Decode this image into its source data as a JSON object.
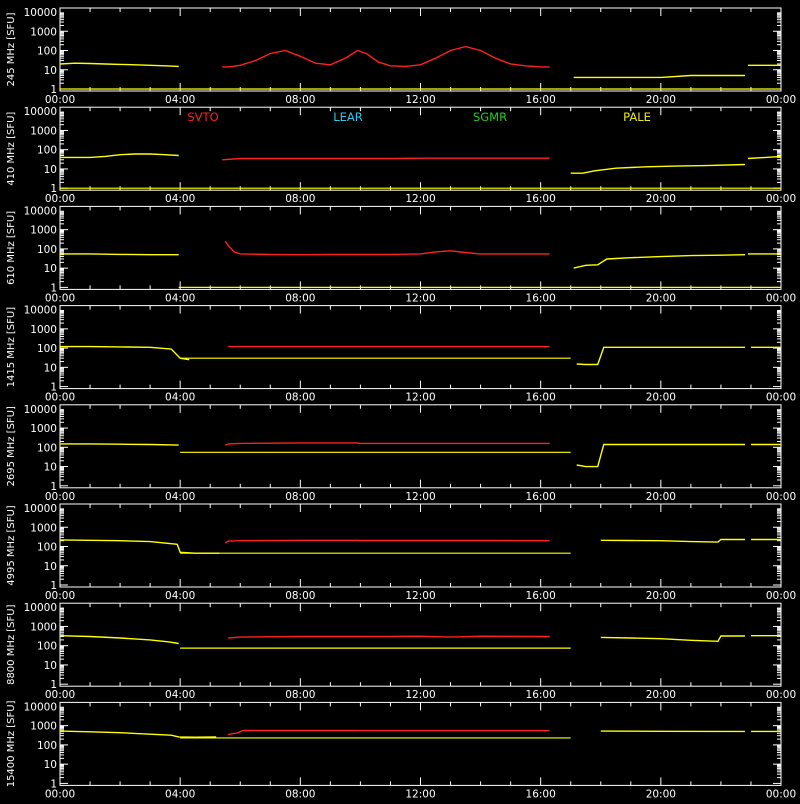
{
  "chart_data": {
    "type": "line",
    "x_ticks": [
      "00:00",
      "04:00",
      "08:00",
      "12:00",
      "16:00",
      "20:00",
      "00:00"
    ],
    "x_range_hours": [
      0,
      24
    ],
    "y_scale": "log",
    "y_range": [
      1,
      10000
    ],
    "y_ticks": [
      "1",
      "10",
      "100",
      "1000",
      "10000"
    ],
    "grid": false,
    "legend_labels": [
      {
        "name": "SVTO",
        "color": "#ff2020"
      },
      {
        "name": "LEAR",
        "color": "#2ec8e8"
      },
      {
        "name": "SGMR",
        "color": "#22cc22"
      },
      {
        "name": "PALE",
        "color": "#e8e820"
      }
    ],
    "panels": [
      {
        "ylabel": "245  MHz  [SFU]",
        "series": [
          {
            "name": "PALE",
            "color": "#ffff00",
            "x": [
              0,
              0.5,
              1,
              1.5,
              2,
              2.5,
              3,
              3.5,
              3.95
            ],
            "values": [
              20,
              22,
              21,
              20,
              19,
              18,
              17,
              16,
              15
            ]
          },
          {
            "name": "SVTO",
            "color": "#ff2020",
            "x": [
              5.4,
              5.6,
              6,
              6.5,
              7,
              7.5,
              8,
              8.5,
              9,
              9.5,
              9.9,
              10.2,
              10.6,
              11,
              11.5,
              12,
              12.5,
              13,
              13.5,
              14,
              14.5,
              15,
              15.5,
              16,
              16.3
            ],
            "values": [
              14,
              14,
              17,
              30,
              70,
              100,
              50,
              22,
              18,
              40,
              100,
              70,
              25,
              16,
              15,
              18,
              40,
              100,
              160,
              100,
              40,
              20,
              16,
              14,
              14
            ]
          },
          {
            "name": "PALE",
            "color": "#ffff00",
            "x": [
              17.1,
              17.5,
              18,
              19,
              20,
              21,
              22,
              22.8
            ],
            "values": [
              4,
              4,
              4,
              4,
              4,
              5,
              5,
              5
            ]
          },
          {
            "name": "PALE",
            "color": "#ffff00",
            "x": [
              22.9,
              23.5,
              24
            ],
            "values": [
              17,
              17,
              17
            ]
          }
        ]
      },
      {
        "ylabel": "410  MHz  [SFU]",
        "series": [
          {
            "name": "PALE",
            "color": "#ffff00",
            "x": [
              0,
              0.5,
              1,
              1.5,
              2,
              2.5,
              3,
              3.5,
              3.95
            ],
            "values": [
              40,
              40,
              40,
              45,
              55,
              60,
              60,
              55,
              50
            ]
          },
          {
            "name": "SVTO",
            "color": "#ff2020",
            "x": [
              5.4,
              6,
              7,
              8,
              9,
              9.8,
              10,
              11,
              12,
              13,
              14,
              15,
              16,
              16.3
            ],
            "values": [
              30,
              35,
              35,
              35,
              35,
              35,
              35,
              35,
              36,
              36,
              36,
              36,
              36,
              36
            ]
          },
          {
            "name": "PALE",
            "color": "#ffff00",
            "x": [
              17,
              17.4,
              17.8,
              18.5,
              19.5,
              20.5,
              21.5,
              22.8
            ],
            "values": [
              6,
              6,
              8,
              11,
              13,
              14,
              15,
              17
            ]
          },
          {
            "name": "PALE",
            "color": "#ffff00",
            "x": [
              22.9,
              23.5,
              24
            ],
            "values": [
              35,
              40,
              45
            ]
          }
        ]
      },
      {
        "ylabel": "610  MHz  [SFU]",
        "series": [
          {
            "name": "PALE",
            "color": "#ffff00",
            "x": [
              0,
              1,
              2,
              3,
              3.95
            ],
            "values": [
              55,
              55,
              52,
              50,
              50
            ]
          },
          {
            "name": "SVTO",
            "color": "#ff2020",
            "x": [
              5.5,
              5.6,
              5.8,
              6,
              7,
              8,
              9,
              10,
              11,
              12,
              12.5,
              13,
              13.5,
              14,
              15,
              16,
              16.3
            ],
            "values": [
              250,
              150,
              70,
              55,
              52,
              50,
              52,
              52,
              52,
              55,
              70,
              80,
              65,
              55,
              55,
              55,
              55
            ]
          },
          {
            "name": "PALE",
            "color": "#ffff00",
            "x": [
              17.1,
              17.5,
              17.9,
              18.2,
              19,
              20,
              21,
              22,
              22.8
            ],
            "values": [
              10,
              14,
              15,
              30,
              35,
              40,
              45,
              47,
              50
            ]
          },
          {
            "name": "PALE",
            "color": "#ffff00",
            "x": [
              22.9,
              23.5,
              24
            ],
            "values": [
              55,
              55,
              55
            ]
          }
        ]
      },
      {
        "ylabel": "1415  MHz  [SFU]",
        "series": [
          {
            "name": "PALE",
            "color": "#ffff00",
            "x": [
              0,
              1,
              2,
              3,
              3.7,
              4,
              4.3
            ],
            "values": [
              120,
              120,
              115,
              110,
              90,
              30,
              25
            ]
          },
          {
            "name": "SVTO",
            "color": "#ff2020",
            "x": [
              5.6,
              6,
              8,
              9.9,
              10,
              12,
              14,
              16.3
            ],
            "values": [
              120,
              120,
              120,
              120,
              120,
              120,
              120,
              120
            ]
          },
          {
            "name": "PALE",
            "color": "#ffff00",
            "x": [
              17.2,
              17.5,
              17.9,
              18.1,
              20,
              22,
              22.8
            ],
            "values": [
              15,
              14,
              14,
              110,
              110,
              110,
              110
            ]
          },
          {
            "name": "PALE",
            "color": "#ffff00",
            "x": [
              23,
              24
            ],
            "values": [
              110,
              110
            ]
          }
        ]
      },
      {
        "ylabel": "2695  MHz  [SFU]",
        "series": [
          {
            "name": "PALE",
            "color": "#ffff00",
            "x": [
              0,
              1,
              2,
              3,
              3.95
            ],
            "values": [
              150,
              150,
              145,
              140,
              130
            ]
          },
          {
            "name": "SVTO",
            "color": "#ff2020",
            "x": [
              5.5,
              5.6,
              6,
              8,
              9.9,
              10,
              12,
              14,
              16.3
            ],
            "values": [
              130,
              150,
              160,
              170,
              170,
              160,
              160,
              160,
              160
            ]
          },
          {
            "name": "PALE",
            "color": "#ffff00",
            "x": [
              17.2,
              17.5,
              17.9,
              18.1,
              20,
              22,
              22.8
            ],
            "values": [
              12,
              10,
              10,
              140,
              140,
              140,
              140
            ]
          },
          {
            "name": "PALE",
            "color": "#ffff00",
            "x": [
              23,
              24
            ],
            "values": [
              140,
              140
            ]
          }
        ]
      },
      {
        "ylabel": "4995  MHz  [SFU]",
        "series": [
          {
            "name": "PALE",
            "color": "#ffff00",
            "x": [
              0,
              1,
              2,
              3,
              3.9,
              4,
              4.5,
              5.3
            ],
            "values": [
              220,
              210,
              200,
              180,
              130,
              50,
              45,
              45
            ]
          },
          {
            "name": "SVTO",
            "color": "#ff2020",
            "x": [
              5.5,
              5.6,
              6,
              8,
              9.9,
              10,
              12,
              14,
              16.3
            ],
            "values": [
              150,
              190,
              200,
              210,
              210,
              205,
              205,
              205,
              200
            ]
          },
          {
            "name": "PALE",
            "color": "#ffff00",
            "x": [
              18,
              19,
              20,
              21,
              21.9,
              22,
              22.8
            ],
            "values": [
              210,
              205,
              200,
              180,
              170,
              230,
              230
            ]
          },
          {
            "name": "PALE",
            "color": "#ffff00",
            "x": [
              23,
              24
            ],
            "values": [
              230,
              230
            ]
          }
        ]
      },
      {
        "ylabel": "8800  MHz  [SFU]",
        "series": [
          {
            "name": "PALE",
            "color": "#ffff00",
            "x": [
              0,
              1,
              2,
              3,
              3.6,
              3.95
            ],
            "values": [
              330,
              300,
              250,
              200,
              160,
              130
            ]
          },
          {
            "name": "SVTO",
            "color": "#ff2020",
            "x": [
              5.6,
              6,
              8,
              9.9,
              10,
              12,
              13,
              14,
              16.3
            ],
            "values": [
              250,
              280,
              300,
              300,
              300,
              310,
              280,
              310,
              300
            ]
          },
          {
            "name": "PALE",
            "color": "#ffff00",
            "x": [
              18,
              19,
              20,
              21,
              21.9,
              22,
              22.8
            ],
            "values": [
              270,
              250,
              230,
              190,
              170,
              320,
              320
            ]
          },
          {
            "name": "PALE",
            "color": "#ffff00",
            "x": [
              23,
              24
            ],
            "values": [
              330,
              330
            ]
          }
        ]
      },
      {
        "ylabel": "15400  MHz  [SFU]",
        "series": [
          {
            "name": "PALE",
            "color": "#ffff00",
            "x": [
              0,
              1,
              2,
              3,
              3.7,
              3.95,
              4.5,
              5.2
            ],
            "values": [
              520,
              480,
              430,
              360,
              320,
              260,
              250,
              260
            ]
          },
          {
            "name": "SVTO",
            "color": "#ff2020",
            "x": [
              5.6,
              5.9,
              6.1,
              8,
              9.9,
              10,
              12,
              14,
              16.3
            ],
            "values": [
              350,
              420,
              560,
              560,
              560,
              550,
              550,
              550,
              550
            ]
          },
          {
            "name": "PALE",
            "color": "#ffff00",
            "x": [
              18,
              20,
              22,
              22.8
            ],
            "values": [
              520,
              510,
              500,
              500
            ]
          },
          {
            "name": "PALE",
            "color": "#ffff00",
            "x": [
              23,
              24
            ],
            "values": [
              500,
              500
            ]
          }
        ]
      }
    ],
    "reference_lines": [
      {
        "panel": 0,
        "value": 1,
        "x": [
          0,
          24
        ]
      },
      {
        "panel": 1,
        "value": 1,
        "x": [
          0,
          24
        ]
      },
      {
        "panel": 2,
        "value": 1,
        "x": [
          3.95,
          24
        ]
      },
      {
        "panel": 3,
        "value": 30,
        "x": [
          4.0,
          17.0
        ]
      },
      {
        "panel": 4,
        "value": 55,
        "x": [
          4.0,
          17.0
        ]
      },
      {
        "panel": 5,
        "value": 45,
        "x": [
          4.0,
          17.0
        ]
      },
      {
        "panel": 6,
        "value": 75,
        "x": [
          4.0,
          17.0
        ]
      },
      {
        "panel": 7,
        "value": 230,
        "x": [
          4.0,
          17.0
        ]
      }
    ]
  }
}
